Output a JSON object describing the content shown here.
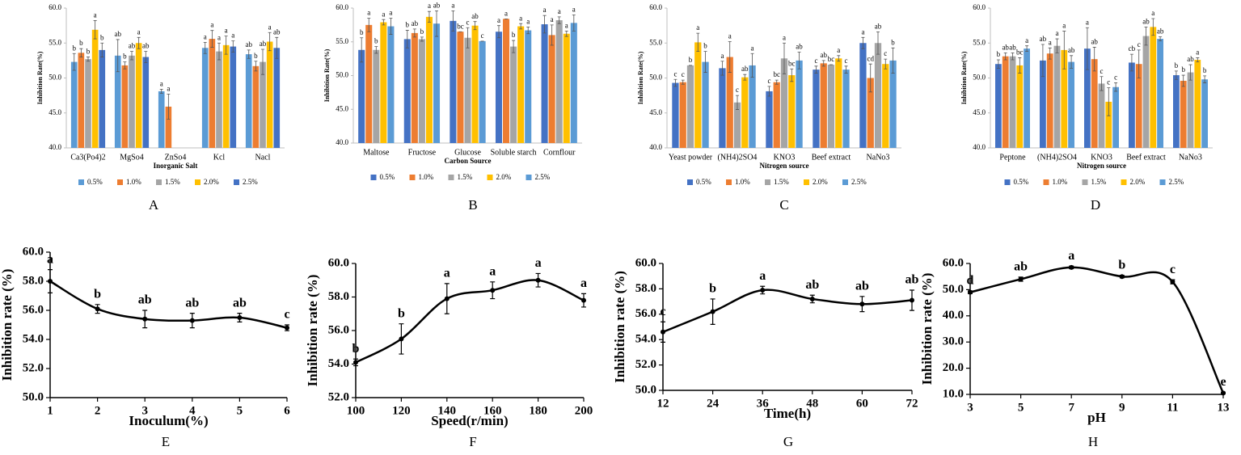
{
  "chart_data": [
    {
      "type": "bar",
      "panel": "A",
      "ylabel": "Inhibition Rate(%)",
      "xlabel": "Inorganic Salt",
      "categories": [
        "Ca3(Po4)2",
        "MgSo4",
        "ZnSo4",
        "Kcl",
        "Nacl"
      ],
      "ylim": [
        40,
        60
      ],
      "yticks": [
        {
          "value": 40,
          "label": "40.0"
        },
        {
          "value": 45,
          "label": "45.0"
        },
        {
          "value": 50,
          "label": "50.0"
        },
        {
          "value": 55,
          "label": "55.0"
        },
        {
          "value": 60,
          "label": "60.0"
        }
      ],
      "series": [
        {
          "name": "0.5%",
          "color": "#5b9bd5",
          "values": [
            52.3,
            53.2,
            48.1,
            54.3,
            53.4
          ],
          "errors": [
            1.2,
            2.3,
            0.3,
            0.8,
            0.6
          ],
          "letters": [
            "b",
            "ab",
            "a",
            "a",
            "ab"
          ]
        },
        {
          "name": "1.0%",
          "color": "#ed7d31",
          "values": [
            53.6,
            51.8,
            45.9,
            55.6,
            51.7
          ],
          "errors": [
            0.6,
            0.5,
            1.8,
            1.2,
            0.7
          ],
          "letters": [
            "b",
            "b",
            "a",
            "a",
            "b"
          ]
        },
        {
          "name": "1.5%",
          "color": "#a5a5a5",
          "values": [
            52.7,
            53.2,
            null,
            53.8,
            52.3
          ],
          "errors": [
            0.3,
            0.6,
            null,
            1.2,
            1.8
          ],
          "letters": [
            "b",
            "ab",
            null,
            "a",
            "ab"
          ]
        },
        {
          "name": "2.0%",
          "color": "#ffc000",
          "values": [
            56.9,
            55.0,
            null,
            54.7,
            55.2
          ],
          "errors": [
            1.3,
            0.8,
            null,
            1.3,
            1.3
          ],
          "letters": [
            "a",
            "a",
            null,
            "a",
            "a"
          ]
        },
        {
          "name": "2.5%",
          "color": "#4472c4",
          "values": [
            54.0,
            53.0,
            null,
            54.5,
            54.3
          ],
          "errors": [
            1.0,
            0.8,
            null,
            0.8,
            1.5
          ],
          "letters": [
            "b",
            "ab",
            null,
            "a",
            "ab"
          ]
        }
      ]
    },
    {
      "type": "bar",
      "panel": "B",
      "ylabel": "Inhibition Rate(%)",
      "xlabel": "Carbon Source",
      "categories": [
        "Maltose",
        "Fructose",
        "Glucose",
        "Soluble starch",
        "Cornflour"
      ],
      "ylim": [
        40,
        60
      ],
      "yticks": [
        {
          "value": 40,
          "label": "40.0"
        },
        {
          "value": 45,
          "label": "45.0"
        },
        {
          "value": 50,
          "label": "50.0"
        },
        {
          "value": 55,
          "label": "55.0"
        },
        {
          "value": 60,
          "label": "60.0"
        }
      ],
      "series": [
        {
          "name": "0.5%",
          "color": "#4472c4",
          "values": [
            53.8,
            55.4,
            58.1,
            56.5,
            57.6
          ],
          "errors": [
            1.8,
            1.3,
            1.5,
            0.9,
            1.3
          ],
          "letters": [
            "b",
            "b",
            "a",
            "a",
            "a"
          ]
        },
        {
          "name": "1.0%",
          "color": "#ed7d31",
          "values": [
            57.5,
            56.3,
            56.5,
            58.4,
            56.0
          ],
          "errors": [
            1.0,
            0.6,
            0.0,
            0.0,
            1.5
          ],
          "letters": [
            "a",
            "ab",
            "bc",
            "a",
            "a"
          ]
        },
        {
          "name": "1.5%",
          "color": "#a5a5a5",
          "values": [
            53.8,
            55.4,
            55.6,
            54.3,
            58.2
          ],
          "errors": [
            0.5,
            0.3,
            1.5,
            0.9,
            0.5
          ],
          "letters": [
            "b",
            "b",
            "c",
            "b",
            "a"
          ]
        },
        {
          "name": "2.0%",
          "color": "#ffc000",
          "values": [
            57.9,
            58.7,
            57.4,
            57.3,
            56.2
          ],
          "errors": [
            0.4,
            0.8,
            0.6,
            0.4,
            0.4
          ],
          "letters": [
            "a",
            "a",
            "ab",
            "a",
            "a"
          ]
        },
        {
          "name": "2.5%",
          "color": "#5b9bd5",
          "values": [
            57.3,
            57.7,
            55.1,
            56.7,
            57.8
          ],
          "errors": [
            1.2,
            1.9,
            0.0,
            0.5,
            1.2
          ],
          "letters": [
            "a",
            "ab",
            "c",
            "a",
            "a"
          ]
        }
      ]
    },
    {
      "type": "bar",
      "panel": "C",
      "ylabel": "Inhibition Rate(%)",
      "xlabel": "Nitrogen source",
      "categories": [
        "Yeast powder",
        "(NH4)2SO4",
        "KNO3",
        "Beef extract",
        "NaNo3"
      ],
      "ylim": [
        40,
        60
      ],
      "yticks": [
        {
          "value": 40,
          "label": "40.0"
        },
        {
          "value": 45,
          "label": "45.0"
        },
        {
          "value": 50,
          "label": "50.0"
        },
        {
          "value": 55,
          "label": "55.0"
        },
        {
          "value": 60,
          "label": "60.0"
        }
      ],
      "series": [
        {
          "name": "0.5%",
          "color": "#4472c4",
          "values": [
            49.3,
            51.4,
            48.1,
            51.2,
            55.0
          ],
          "errors": [
            0.5,
            1.0,
            0.7,
            0.5,
            0.8
          ],
          "letters": [
            "c",
            "a",
            "c",
            "c",
            "a"
          ]
        },
        {
          "name": "1.0%",
          "color": "#ed7d31",
          "values": [
            49.4,
            53.0,
            49.4,
            52.1,
            50.0
          ],
          "errors": [
            0.3,
            2.2,
            0.3,
            0.4,
            2.0
          ],
          "letters": [
            "c",
            "a",
            "bc",
            "ab",
            "cd"
          ]
        },
        {
          "name": "1.5%",
          "color": "#a5a5a5",
          "values": [
            51.8,
            46.5,
            52.8,
            51.9,
            55.0
          ],
          "errors": [
            0.0,
            1.0,
            2.2,
            0.0,
            1.6
          ],
          "letters": [
            "b",
            "c",
            "a",
            "bc",
            "ab"
          ]
        },
        {
          "name": "2.0%",
          "color": "#ffc000",
          "values": [
            55.1,
            50.1,
            50.4,
            52.8,
            52.0
          ],
          "errors": [
            1.3,
            0.4,
            0.9,
            0.4,
            0.7
          ],
          "letters": [
            "a",
            "ab",
            "bc",
            "a",
            "c"
          ]
        },
        {
          "name": "2.5%",
          "color": "#5b9bd5",
          "values": [
            52.3,
            51.8,
            52.5,
            51.2,
            52.5
          ],
          "errors": [
            1.5,
            1.7,
            1.2,
            0.5,
            1.8
          ],
          "letters": [
            "b",
            "a",
            "ab",
            "c",
            "b"
          ]
        }
      ]
    },
    {
      "type": "bar",
      "panel": "D",
      "ylabel": "Inhibition Rate(%)",
      "xlabel": "Nitrogen source",
      "categories": [
        "Peptone",
        "(NH4)2SO4",
        "KNO3",
        "Beef extract",
        "NaNo3"
      ],
      "ylim": [
        40,
        60
      ],
      "yticks": [
        {
          "value": 40,
          "label": "40.0"
        },
        {
          "value": 45,
          "label": "45.0"
        },
        {
          "value": 50,
          "label": "50.0"
        },
        {
          "value": 55,
          "label": "55.0"
        },
        {
          "value": 60,
          "label": "60.0"
        }
      ],
      "series": [
        {
          "name": "0.5%",
          "color": "#4472c4",
          "values": [
            52.0,
            52.5,
            54.2,
            52.2,
            50.4
          ],
          "errors": [
            0.6,
            2.3,
            3.0,
            1.2,
            0.6
          ],
          "letters": [
            "b",
            "ab",
            "a",
            "cb",
            "b"
          ]
        },
        {
          "name": "1.0%",
          "color": "#ed7d31",
          "values": [
            53.1,
            53.5,
            52.7,
            52.0,
            49.6
          ],
          "errors": [
            0.5,
            0.8,
            1.7,
            2.0,
            0.8
          ],
          "letters": [
            "ab",
            "a",
            "ab",
            "c",
            "b"
          ]
        },
        {
          "name": "1.5%",
          "color": "#a5a5a5",
          "values": [
            53.1,
            54.6,
            49.2,
            56.0,
            50.8
          ],
          "errors": [
            0.5,
            1.0,
            1.0,
            1.3,
            1.1
          ],
          "letters": [
            "ab",
            "a",
            "c",
            "ab",
            "ab"
          ]
        },
        {
          "name": "2.0%",
          "color": "#ffc000",
          "values": [
            51.8,
            54.0,
            46.6,
            57.3,
            52.6
          ],
          "errors": [
            1.1,
            2.7,
            2.0,
            1.2,
            0.3
          ],
          "letters": [
            "bc",
            "a",
            "c",
            "a",
            "a"
          ]
        },
        {
          "name": "2.5%",
          "color": "#5b9bd5",
          "values": [
            54.2,
            52.3,
            48.7,
            55.6,
            49.8
          ],
          "errors": [
            0.4,
            0.9,
            0.6,
            0.3,
            0.5
          ],
          "letters": [
            "a",
            "ab",
            "c",
            "ab",
            "b"
          ]
        }
      ]
    },
    {
      "type": "line",
      "panel": "E",
      "ylabel": "Inhibition rate (%)",
      "xlabel": "Inoculum(%)",
      "color": "#000000",
      "x": [
        1,
        2,
        3,
        4,
        5,
        6
      ],
      "xlim": [
        1,
        6
      ],
      "xticks": [
        1,
        2,
        3,
        4,
        5,
        6
      ],
      "ylim": [
        50,
        60
      ],
      "yticks": [
        {
          "value": 50,
          "label": "50.0"
        },
        {
          "value": 52,
          "label": "52.0"
        },
        {
          "value": 54,
          "label": "54.0"
        },
        {
          "value": 56,
          "label": "56.0"
        },
        {
          "value": 58,
          "label": "58.0"
        },
        {
          "value": 60,
          "label": "60.0"
        }
      ],
      "values": [
        58.0,
        56.1,
        55.4,
        55.3,
        55.5,
        54.8
      ],
      "errors": [
        0.8,
        0.3,
        0.6,
        0.5,
        0.3,
        0.2
      ],
      "letters": [
        "a",
        "b",
        "ab",
        "ab",
        "ab",
        "c"
      ]
    },
    {
      "type": "line",
      "panel": "F",
      "ylabel": "Inhibition rate (%)",
      "xlabel": "Speed(r/min)",
      "color": "#000000",
      "x": [
        100,
        120,
        140,
        160,
        180,
        200
      ],
      "xlim": [
        100,
        200
      ],
      "xticks": [
        100,
        120,
        140,
        160,
        180,
        200
      ],
      "ylim": [
        52,
        60
      ],
      "yticks": [
        {
          "value": 52,
          "label": "52.0"
        },
        {
          "value": 54,
          "label": "54.0"
        },
        {
          "value": 56,
          "label": "56.0"
        },
        {
          "value": 58,
          "label": "58.0"
        },
        {
          "value": 60,
          "label": "60.0"
        }
      ],
      "values": [
        54.1,
        55.5,
        57.9,
        58.4,
        59.0,
        57.8
      ],
      "errors": [
        0.2,
        0.9,
        0.9,
        0.5,
        0.4,
        0.4
      ],
      "letters": [
        "b",
        "b",
        "a",
        "a",
        "a",
        "a"
      ]
    },
    {
      "type": "line",
      "panel": "G",
      "ylabel": "Inhibition rate (%)",
      "xlabel": "Time(h)",
      "color": "#000000",
      "x": [
        12,
        24,
        36,
        48,
        60,
        72
      ],
      "xlim": [
        12,
        72
      ],
      "xticks": [
        12,
        24,
        36,
        48,
        60,
        72
      ],
      "ylim": [
        50,
        60
      ],
      "yticks": [
        {
          "value": 50,
          "label": "50.0"
        },
        {
          "value": 52,
          "label": "52.0"
        },
        {
          "value": 54,
          "label": "54.0"
        },
        {
          "value": 56,
          "label": "56.0"
        },
        {
          "value": 58,
          "label": "58.0"
        },
        {
          "value": 60,
          "label": "60.0"
        }
      ],
      "values": [
        54.6,
        56.2,
        57.9,
        57.2,
        56.8,
        57.1
      ],
      "errors": [
        0.8,
        1.0,
        0.3,
        0.3,
        0.6,
        0.8
      ],
      "letters": [
        "c",
        "b",
        "a",
        "ab",
        "ab",
        "ab"
      ]
    },
    {
      "type": "line",
      "panel": "H",
      "ylabel": "Inhibition rate (%)",
      "xlabel": "pH",
      "color": "#000000",
      "x": [
        3,
        5,
        7,
        9,
        11,
        13
      ],
      "xlim": [
        3,
        13
      ],
      "xticks": [
        3,
        5,
        7,
        9,
        11,
        13
      ],
      "ylim": [
        10,
        60
      ],
      "yticks": [
        {
          "value": 10,
          "label": "10.0"
        },
        {
          "value": 20,
          "label": "20.0"
        },
        {
          "value": 30,
          "label": "30.0"
        },
        {
          "value": 40,
          "label": "40.0"
        },
        {
          "value": 50,
          "label": "50.0"
        },
        {
          "value": 60,
          "label": "60.0"
        }
      ],
      "values": [
        49.0,
        54.0,
        58.5,
        55.0,
        53.0,
        10.5
      ],
      "errors": [
        0.5,
        0.8,
        0.5,
        0.5,
        0.8,
        0.3
      ],
      "letters": [
        "d",
        "ab",
        "a",
        "b",
        "c",
        "e"
      ]
    }
  ]
}
